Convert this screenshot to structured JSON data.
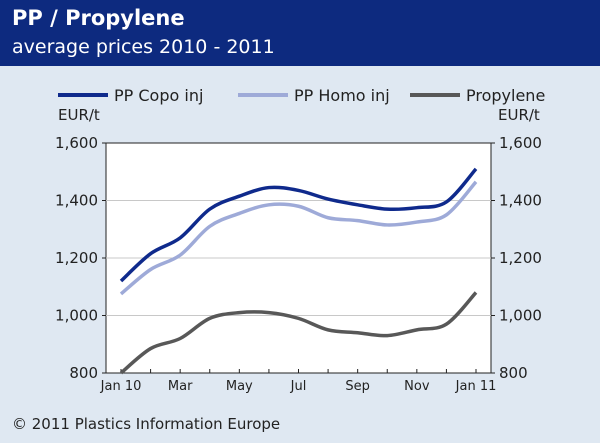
{
  "header": {
    "title": "PP / Propylene",
    "subtitle": "average prices 2010 - 2011"
  },
  "footer": {
    "copyright": "© 2011 Plastics Information Europe"
  },
  "colors": {
    "header_bg": "#0d2a7f",
    "page_bg": "#dfe8f2",
    "plot_bg": "#ffffff"
  },
  "chart_data": {
    "type": "line",
    "title": "",
    "unit_left": "EUR/t",
    "unit_right": "EUR/t",
    "x_tick_labels": [
      "Jan 10",
      "Mar",
      "May",
      "Jul",
      "Sep",
      "Nov",
      "Jan 11"
    ],
    "y_tick_labels": [
      "800",
      "1,000",
      "1,200",
      "1,400",
      "1,600"
    ],
    "y_ticks": [
      800,
      1000,
      1200,
      1400,
      1600
    ],
    "ylim": [
      800,
      1600
    ],
    "x_count": 13,
    "grid": true,
    "legend": "top",
    "series": [
      {
        "name": "PP Copo inj",
        "color": "#0f2a8c",
        "values": [
          1120,
          1215,
          1270,
          1370,
          1415,
          1445,
          1435,
          1405,
          1385,
          1370,
          1375,
          1395,
          1510
        ]
      },
      {
        "name": "PP Homo inj",
        "color": "#9eaad8",
        "values": [
          1075,
          1160,
          1210,
          1310,
          1355,
          1385,
          1380,
          1340,
          1330,
          1315,
          1325,
          1350,
          1465
        ]
      },
      {
        "name": "Propylene",
        "color": "#585858",
        "values": [
          800,
          885,
          920,
          990,
          1010,
          1010,
          990,
          950,
          940,
          930,
          950,
          970,
          1080
        ]
      }
    ]
  }
}
